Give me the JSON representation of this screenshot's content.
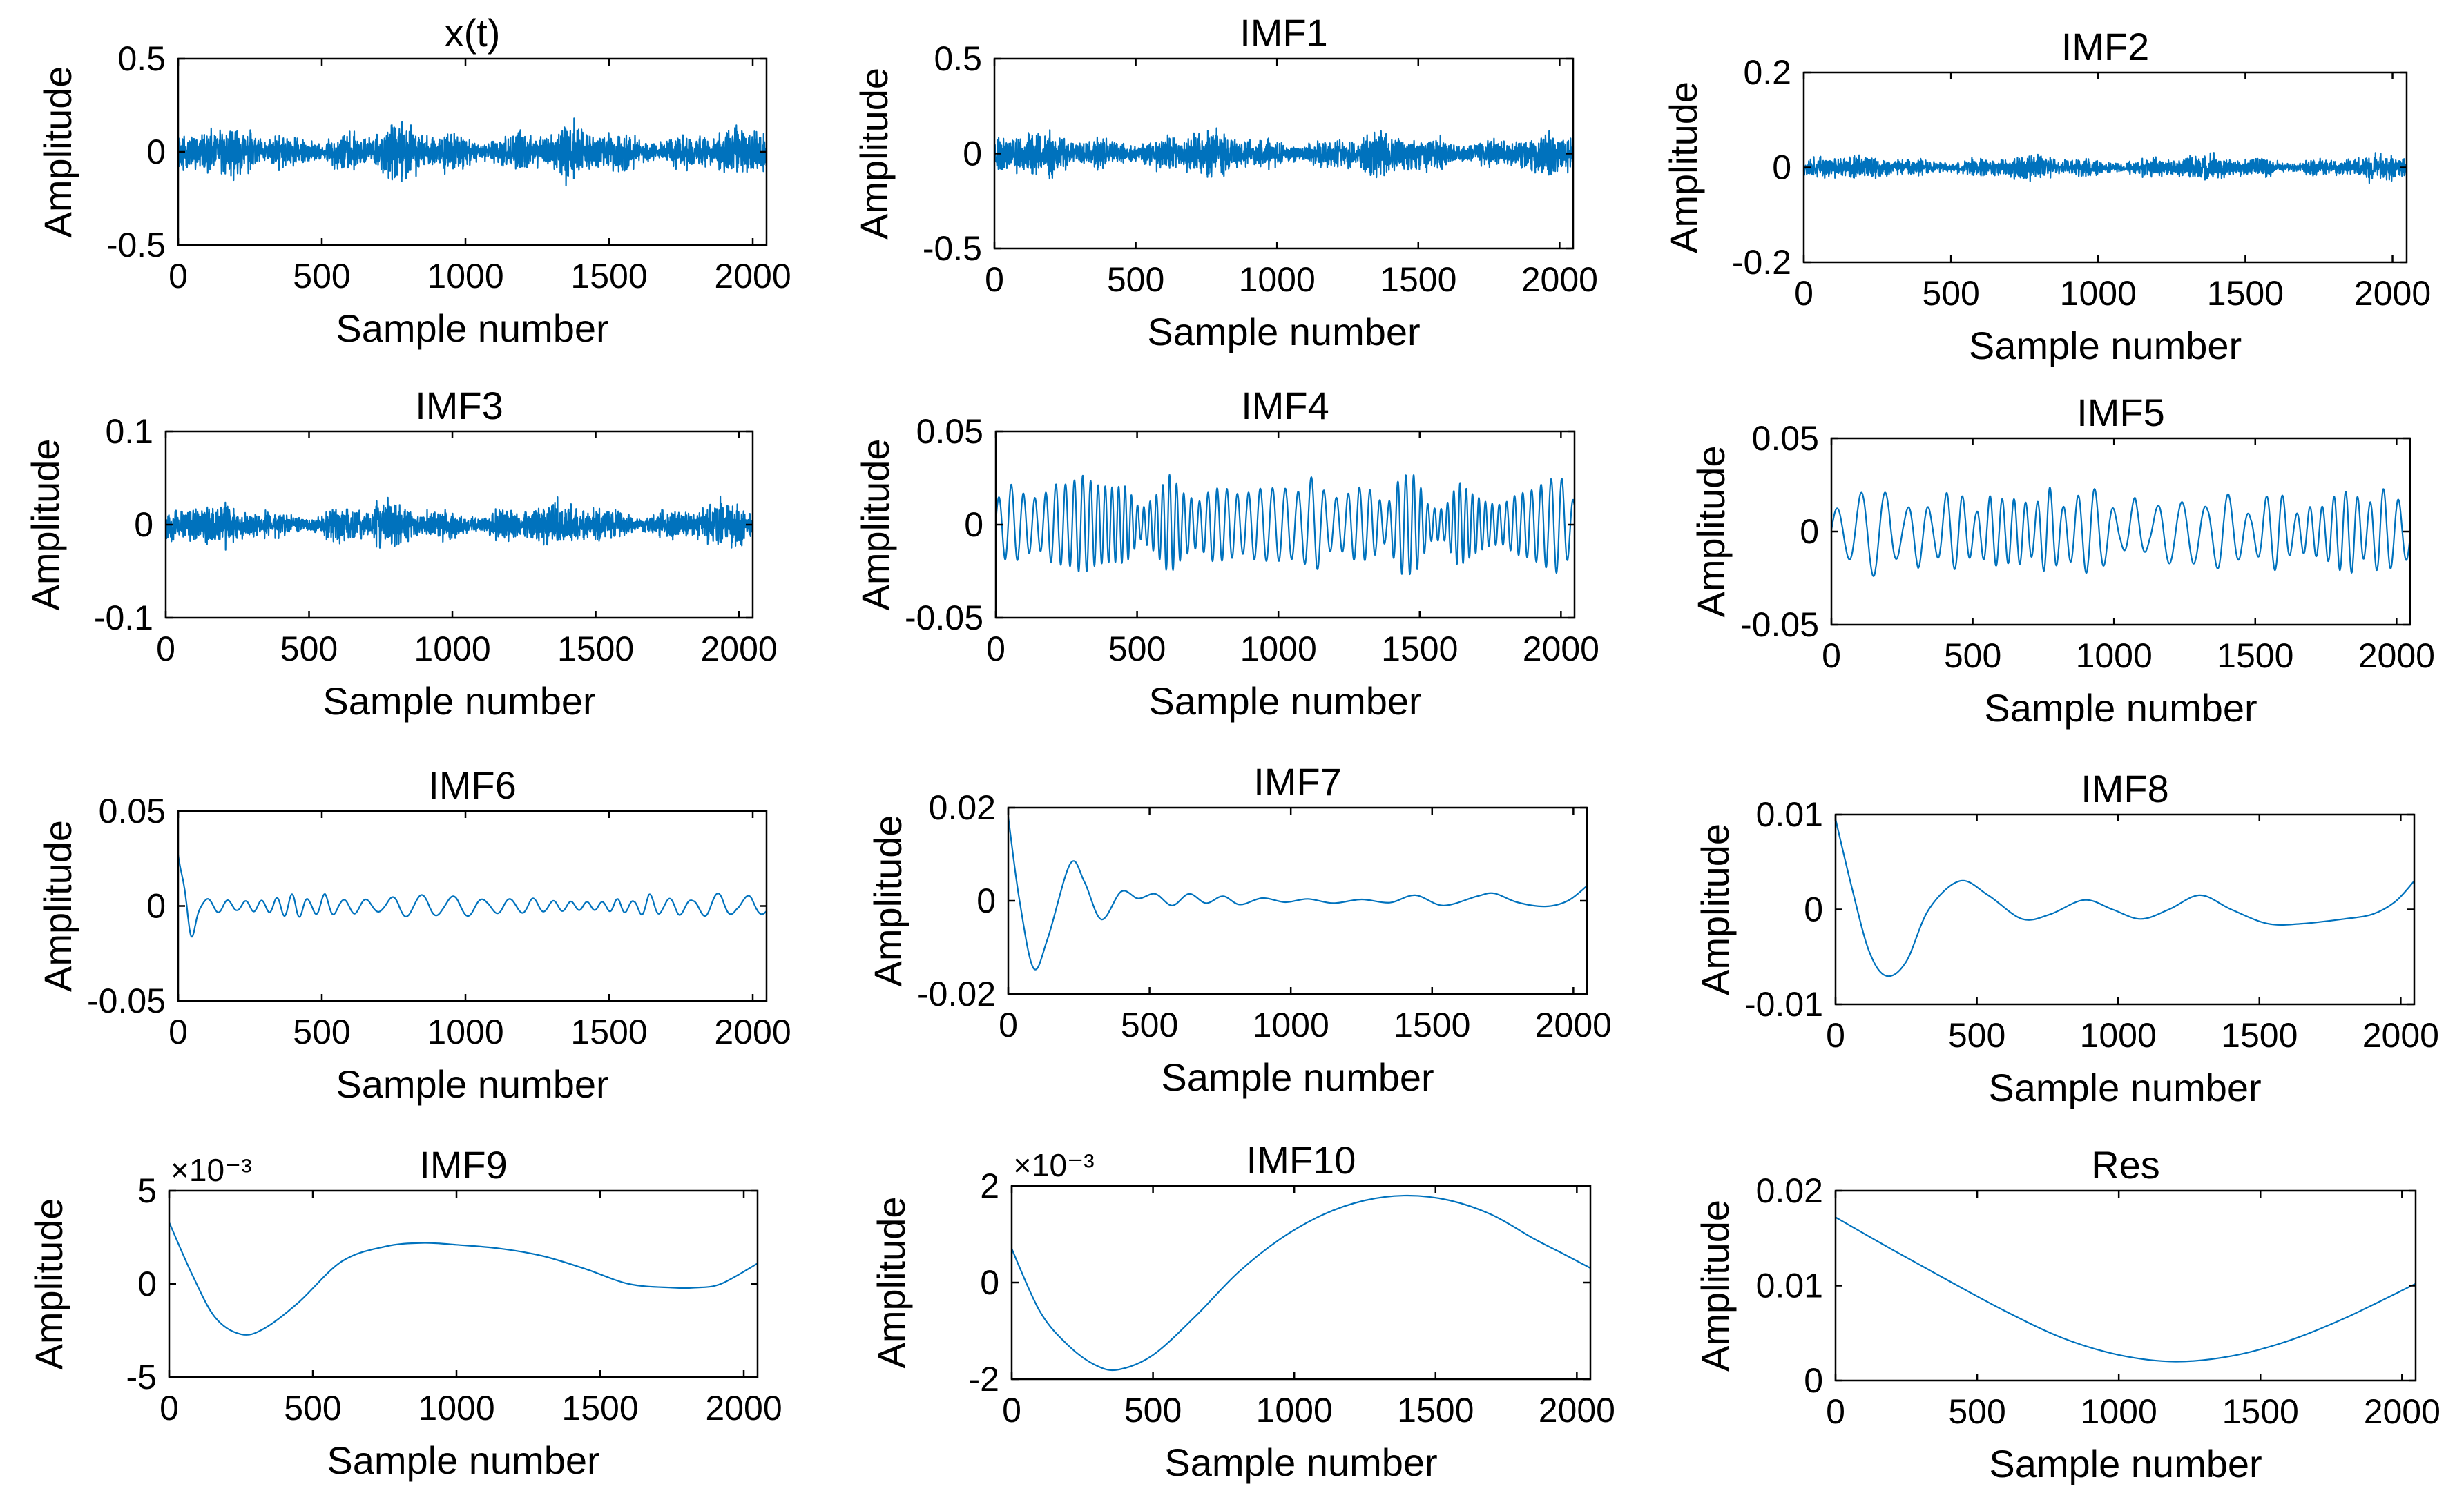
{
  "figure": {
    "line_color": "#0072BD",
    "axis_color": "#000000",
    "background": "#ffffff"
  },
  "chart_data": [
    {
      "type": "line",
      "title": "x(t)",
      "xlabel": "Sample number",
      "ylabel": "Amplitude",
      "xlim": [
        0,
        2048
      ],
      "ylim": [
        -0.5,
        0.5
      ],
      "xticks": [
        0,
        500,
        1000,
        1500,
        2000
      ],
      "xtick_labels": [
        "0",
        "500",
        "1000",
        "1500",
        "2000"
      ],
      "yticks": [
        -0.5,
        0,
        0.5
      ],
      "ytick_labels": [
        "-0.5",
        "0",
        "0.5"
      ],
      "exponent_label": "",
      "signal": {
        "kind": "noise",
        "amplitude": 0.16,
        "seed": 11
      }
    },
    {
      "type": "line",
      "title": "IMF1",
      "xlabel": "Sample number",
      "ylabel": "Amplitude",
      "xlim": [
        0,
        2048
      ],
      "ylim": [
        -0.5,
        0.5
      ],
      "xticks": [
        0,
        500,
        1000,
        1500,
        2000
      ],
      "xtick_labels": [
        "0",
        "500",
        "1000",
        "1500",
        "2000"
      ],
      "yticks": [
        -0.5,
        0,
        0.5
      ],
      "ytick_labels": [
        "-0.5",
        "0",
        "0.5"
      ],
      "exponent_label": "",
      "signal": {
        "kind": "noise",
        "amplitude": 0.14,
        "seed": 23
      }
    },
    {
      "type": "line",
      "title": "IMF2",
      "xlabel": "Sample number",
      "ylabel": "Amplitude",
      "xlim": [
        0,
        2048
      ],
      "ylim": [
        -0.2,
        0.2
      ],
      "xticks": [
        0,
        500,
        1000,
        1500,
        2000
      ],
      "xtick_labels": [
        "0",
        "500",
        "1000",
        "1500",
        "2000"
      ],
      "yticks": [
        -0.2,
        0,
        0.2
      ],
      "ytick_labels": [
        "-0.2",
        "0",
        "0.2"
      ],
      "exponent_label": "",
      "signal": {
        "kind": "noise",
        "amplitude": 0.032,
        "seed": 37
      }
    },
    {
      "type": "line",
      "title": "IMF3",
      "xlabel": "Sample number",
      "ylabel": "Amplitude",
      "xlim": [
        0,
        2048
      ],
      "ylim": [
        -0.1,
        0.1
      ],
      "xticks": [
        0,
        500,
        1000,
        1500,
        2000
      ],
      "xtick_labels": [
        "0",
        "500",
        "1000",
        "1500",
        "2000"
      ],
      "yticks": [
        -0.1,
        0,
        0.1
      ],
      "ytick_labels": [
        "-0.1",
        "0",
        "0.1"
      ],
      "exponent_label": "",
      "signal": {
        "kind": "noise",
        "amplitude": 0.028,
        "seed": 53
      }
    },
    {
      "type": "line",
      "title": "IMF4",
      "xlabel": "Sample number",
      "ylabel": "Amplitude",
      "xlim": [
        0,
        2048
      ],
      "ylim": [
        -0.05,
        0.05
      ],
      "xticks": [
        0,
        500,
        1000,
        1500,
        2000
      ],
      "xtick_labels": [
        "0",
        "500",
        "1000",
        "1500",
        "2000"
      ],
      "yticks": [
        -0.05,
        0,
        0.05
      ],
      "ytick_labels": [
        "-0.05",
        "0",
        "0.05"
      ],
      "exponent_label": "",
      "signal": {
        "kind": "osc",
        "amplitude": 0.022,
        "period": 40,
        "seed": 71
      }
    },
    {
      "type": "line",
      "title": "IMF5",
      "xlabel": "Sample number",
      "ylabel": "Amplitude",
      "xlim": [
        0,
        2048
      ],
      "ylim": [
        -0.05,
        0.05
      ],
      "xticks": [
        0,
        500,
        1000,
        1500,
        2000
      ],
      "xtick_labels": [
        "0",
        "500",
        "1000",
        "1500",
        "2000"
      ],
      "yticks": [
        -0.05,
        0,
        0.05
      ],
      "ytick_labels": [
        "-0.05",
        "0",
        "0.05"
      ],
      "exponent_label": "",
      "signal": {
        "kind": "osc",
        "amplitude": 0.02,
        "period": 75,
        "seed": 89
      }
    },
    {
      "type": "line",
      "title": "IMF6",
      "xlabel": "Sample number",
      "ylabel": "Amplitude",
      "xlim": [
        0,
        2048
      ],
      "ylim": [
        -0.05,
        0.05
      ],
      "xticks": [
        0,
        500,
        1000,
        1500,
        2000
      ],
      "xtick_labels": [
        "0",
        "500",
        "1000",
        "1500",
        "2000"
      ],
      "yticks": [
        -0.05,
        0,
        0.05
      ],
      "ytick_labels": [
        "-0.05",
        "0",
        "0.05"
      ],
      "exponent_label": "",
      "signal": {
        "kind": "osc",
        "amplitude": 0.006,
        "period": 95,
        "seed": 97,
        "start": 0.027,
        "dip": -0.02
      }
    },
    {
      "type": "line",
      "title": "IMF7",
      "xlabel": "Sample number",
      "ylabel": "Amplitude",
      "xlim": [
        0,
        2048
      ],
      "ylim": [
        -0.02,
        0.02
      ],
      "xticks": [
        0,
        500,
        1000,
        1500,
        2000
      ],
      "xtick_labels": [
        "0",
        "500",
        "1000",
        "1500",
        "2000"
      ],
      "yticks": [
        -0.02,
        0,
        0.02
      ],
      "ytick_labels": [
        "-0.02",
        "0",
        "0.02"
      ],
      "exponent_label": "",
      "points": [
        [
          0,
          0.018
        ],
        [
          40,
          0.0
        ],
        [
          90,
          -0.0145
        ],
        [
          140,
          -0.008
        ],
        [
          220,
          0.008
        ],
        [
          270,
          0.004
        ],
        [
          330,
          -0.004
        ],
        [
          400,
          0.002
        ],
        [
          460,
          0.0005
        ],
        [
          520,
          0.0015
        ],
        [
          580,
          -0.001
        ],
        [
          640,
          0.0015
        ],
        [
          700,
          -0.0005
        ],
        [
          760,
          0.001
        ],
        [
          820,
          -0.0008
        ],
        [
          900,
          0.0006
        ],
        [
          980,
          -0.0003
        ],
        [
          1060,
          0.0004
        ],
        [
          1150,
          -0.0005
        ],
        [
          1250,
          0.0003
        ],
        [
          1350,
          -0.0004
        ],
        [
          1440,
          0.0012
        ],
        [
          1540,
          -0.001
        ],
        [
          1660,
          0.001
        ],
        [
          1720,
          0.0016
        ],
        [
          1800,
          -0.0003
        ],
        [
          1900,
          -0.0012
        ],
        [
          1980,
          0.0
        ],
        [
          2048,
          0.0032
        ]
      ]
    },
    {
      "type": "line",
      "title": "IMF8",
      "xlabel": "Sample number",
      "ylabel": "Amplitude",
      "xlim": [
        0,
        2048
      ],
      "ylim": [
        -0.01,
        0.01
      ],
      "xticks": [
        0,
        500,
        1000,
        1500,
        2000
      ],
      "xtick_labels": [
        "0",
        "500",
        "1000",
        "1500",
        "2000"
      ],
      "yticks": [
        -0.01,
        0,
        0.01
      ],
      "ytick_labels": [
        "-0.01",
        "0",
        "0.01"
      ],
      "exponent_label": "",
      "points": [
        [
          0,
          0.0095
        ],
        [
          60,
          0.002
        ],
        [
          120,
          -0.0045
        ],
        [
          180,
          -0.007
        ],
        [
          250,
          -0.0055
        ],
        [
          330,
          0.0
        ],
        [
          440,
          0.003
        ],
        [
          540,
          0.0015
        ],
        [
          660,
          -0.001
        ],
        [
          760,
          -0.0005
        ],
        [
          880,
          0.001
        ],
        [
          980,
          0.0
        ],
        [
          1080,
          -0.001
        ],
        [
          1180,
          0.0
        ],
        [
          1290,
          0.0015
        ],
        [
          1400,
          0.0
        ],
        [
          1530,
          -0.0015
        ],
        [
          1650,
          -0.0015
        ],
        [
          1800,
          -0.001
        ],
        [
          1900,
          -0.0005
        ],
        [
          1980,
          0.0008
        ],
        [
          2048,
          0.003
        ]
      ]
    },
    {
      "type": "line",
      "title": "IMF9",
      "xlabel": "Sample number",
      "ylabel": "Amplitude",
      "xlim": [
        0,
        2048
      ],
      "ylim": [
        -0.005,
        0.005
      ],
      "xticks": [
        0,
        500,
        1000,
        1500,
        2000
      ],
      "xtick_labels": [
        "0",
        "500",
        "1000",
        "1500",
        "2000"
      ],
      "yticks": [
        -0.005,
        0,
        0.005
      ],
      "ytick_labels": [
        "-5",
        "0",
        "5"
      ],
      "exponent_label": "×10⁻³",
      "points": [
        [
          0,
          0.0033
        ],
        [
          80,
          0.0005
        ],
        [
          160,
          -0.0018
        ],
        [
          250,
          -0.0027
        ],
        [
          330,
          -0.0024
        ],
        [
          450,
          -0.001
        ],
        [
          600,
          0.0012
        ],
        [
          750,
          0.002
        ],
        [
          880,
          0.0022
        ],
        [
          1000,
          0.0021
        ],
        [
          1150,
          0.0019
        ],
        [
          1300,
          0.0015
        ],
        [
          1450,
          0.0008
        ],
        [
          1600,
          0.0
        ],
        [
          1750,
          -0.0002
        ],
        [
          1830,
          -0.0002
        ],
        [
          1920,
          0.0
        ],
        [
          2048,
          0.0011
        ]
      ]
    },
    {
      "type": "line",
      "title": "IMF10",
      "xlabel": "Sample number",
      "ylabel": "Amplitude",
      "xlim": [
        0,
        2048
      ],
      "ylim": [
        -0.002,
        0.002
      ],
      "xticks": [
        0,
        500,
        1000,
        1500,
        2000
      ],
      "xtick_labels": [
        "0",
        "500",
        "1000",
        "1500",
        "2000"
      ],
      "yticks": [
        -0.002,
        0,
        0.002
      ],
      "ytick_labels": [
        "-2",
        "0",
        "2"
      ],
      "exponent_label": "×10⁻³",
      "points": [
        [
          0,
          0.0007
        ],
        [
          100,
          -0.0006
        ],
        [
          200,
          -0.0013
        ],
        [
          300,
          -0.00172
        ],
        [
          380,
          -0.0018
        ],
        [
          500,
          -0.0015
        ],
        [
          650,
          -0.0007
        ],
        [
          800,
          0.0002
        ],
        [
          950,
          0.0009
        ],
        [
          1100,
          0.0014
        ],
        [
          1250,
          0.0017
        ],
        [
          1400,
          0.0018
        ],
        [
          1550,
          0.0017
        ],
        [
          1700,
          0.0014
        ],
        [
          1850,
          0.0009
        ],
        [
          1950,
          0.0006
        ],
        [
          2048,
          0.0003
        ]
      ]
    },
    {
      "type": "line",
      "title": "Res",
      "xlabel": "Sample number",
      "ylabel": "Amplitude",
      "xlim": [
        0,
        2048
      ],
      "ylim": [
        0,
        0.02
      ],
      "xticks": [
        0,
        500,
        1000,
        1500,
        2000
      ],
      "xtick_labels": [
        "0",
        "500",
        "1000",
        "1500",
        "2000"
      ],
      "yticks": [
        0,
        0.01,
        0.02
      ],
      "ytick_labels": [
        "0",
        "0.01",
        "0.02"
      ],
      "exponent_label": "",
      "points": [
        [
          0,
          0.0172
        ],
        [
          200,
          0.0138
        ],
        [
          400,
          0.0105
        ],
        [
          600,
          0.0073
        ],
        [
          800,
          0.0045
        ],
        [
          1000,
          0.0027
        ],
        [
          1200,
          0.002
        ],
        [
          1400,
          0.0026
        ],
        [
          1600,
          0.0042
        ],
        [
          1800,
          0.0066
        ],
        [
          2048,
          0.0102
        ]
      ]
    }
  ]
}
